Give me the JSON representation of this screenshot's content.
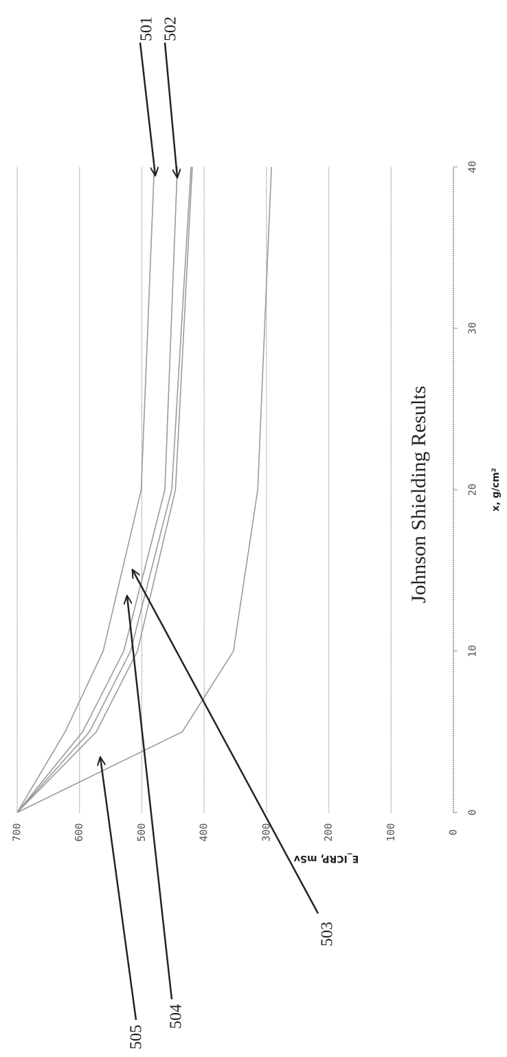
{
  "chart_data": {
    "type": "line",
    "title": "Johnson Shielding Results",
    "x_label": "x, g/cm²",
    "y_label": "E_ICRP, mSv",
    "x": [
      0,
      5,
      10,
      20,
      40
    ],
    "series": [
      {
        "color": "#9a9a9a",
        "values": [
          700,
          623,
          562,
          501,
          480
        ]
      },
      {
        "color": "#9a9a9a",
        "values": [
          700,
          595,
          529,
          463,
          443
        ]
      },
      {
        "color": "#9a9a9a",
        "values": [
          700,
          584,
          518,
          452,
          421
        ]
      },
      {
        "color": "#9a9a9a",
        "values": [
          700,
          573,
          507,
          446,
          419
        ]
      },
      {
        "color": "#9a9a9a",
        "values": [
          700,
          435,
          353,
          314,
          292
        ]
      }
    ],
    "xlim": [
      0,
      40
    ],
    "xticks": [
      0,
      10,
      20,
      30,
      40
    ],
    "ylim": [
      0,
      700
    ],
    "yticks": [
      0,
      100,
      200,
      300,
      400,
      500,
      600,
      700
    ],
    "grid": true,
    "annotations": [
      {
        "text": "501"
      },
      {
        "text": "502"
      },
      {
        "text": "503"
      },
      {
        "text": "504"
      },
      {
        "text": "505"
      }
    ]
  }
}
